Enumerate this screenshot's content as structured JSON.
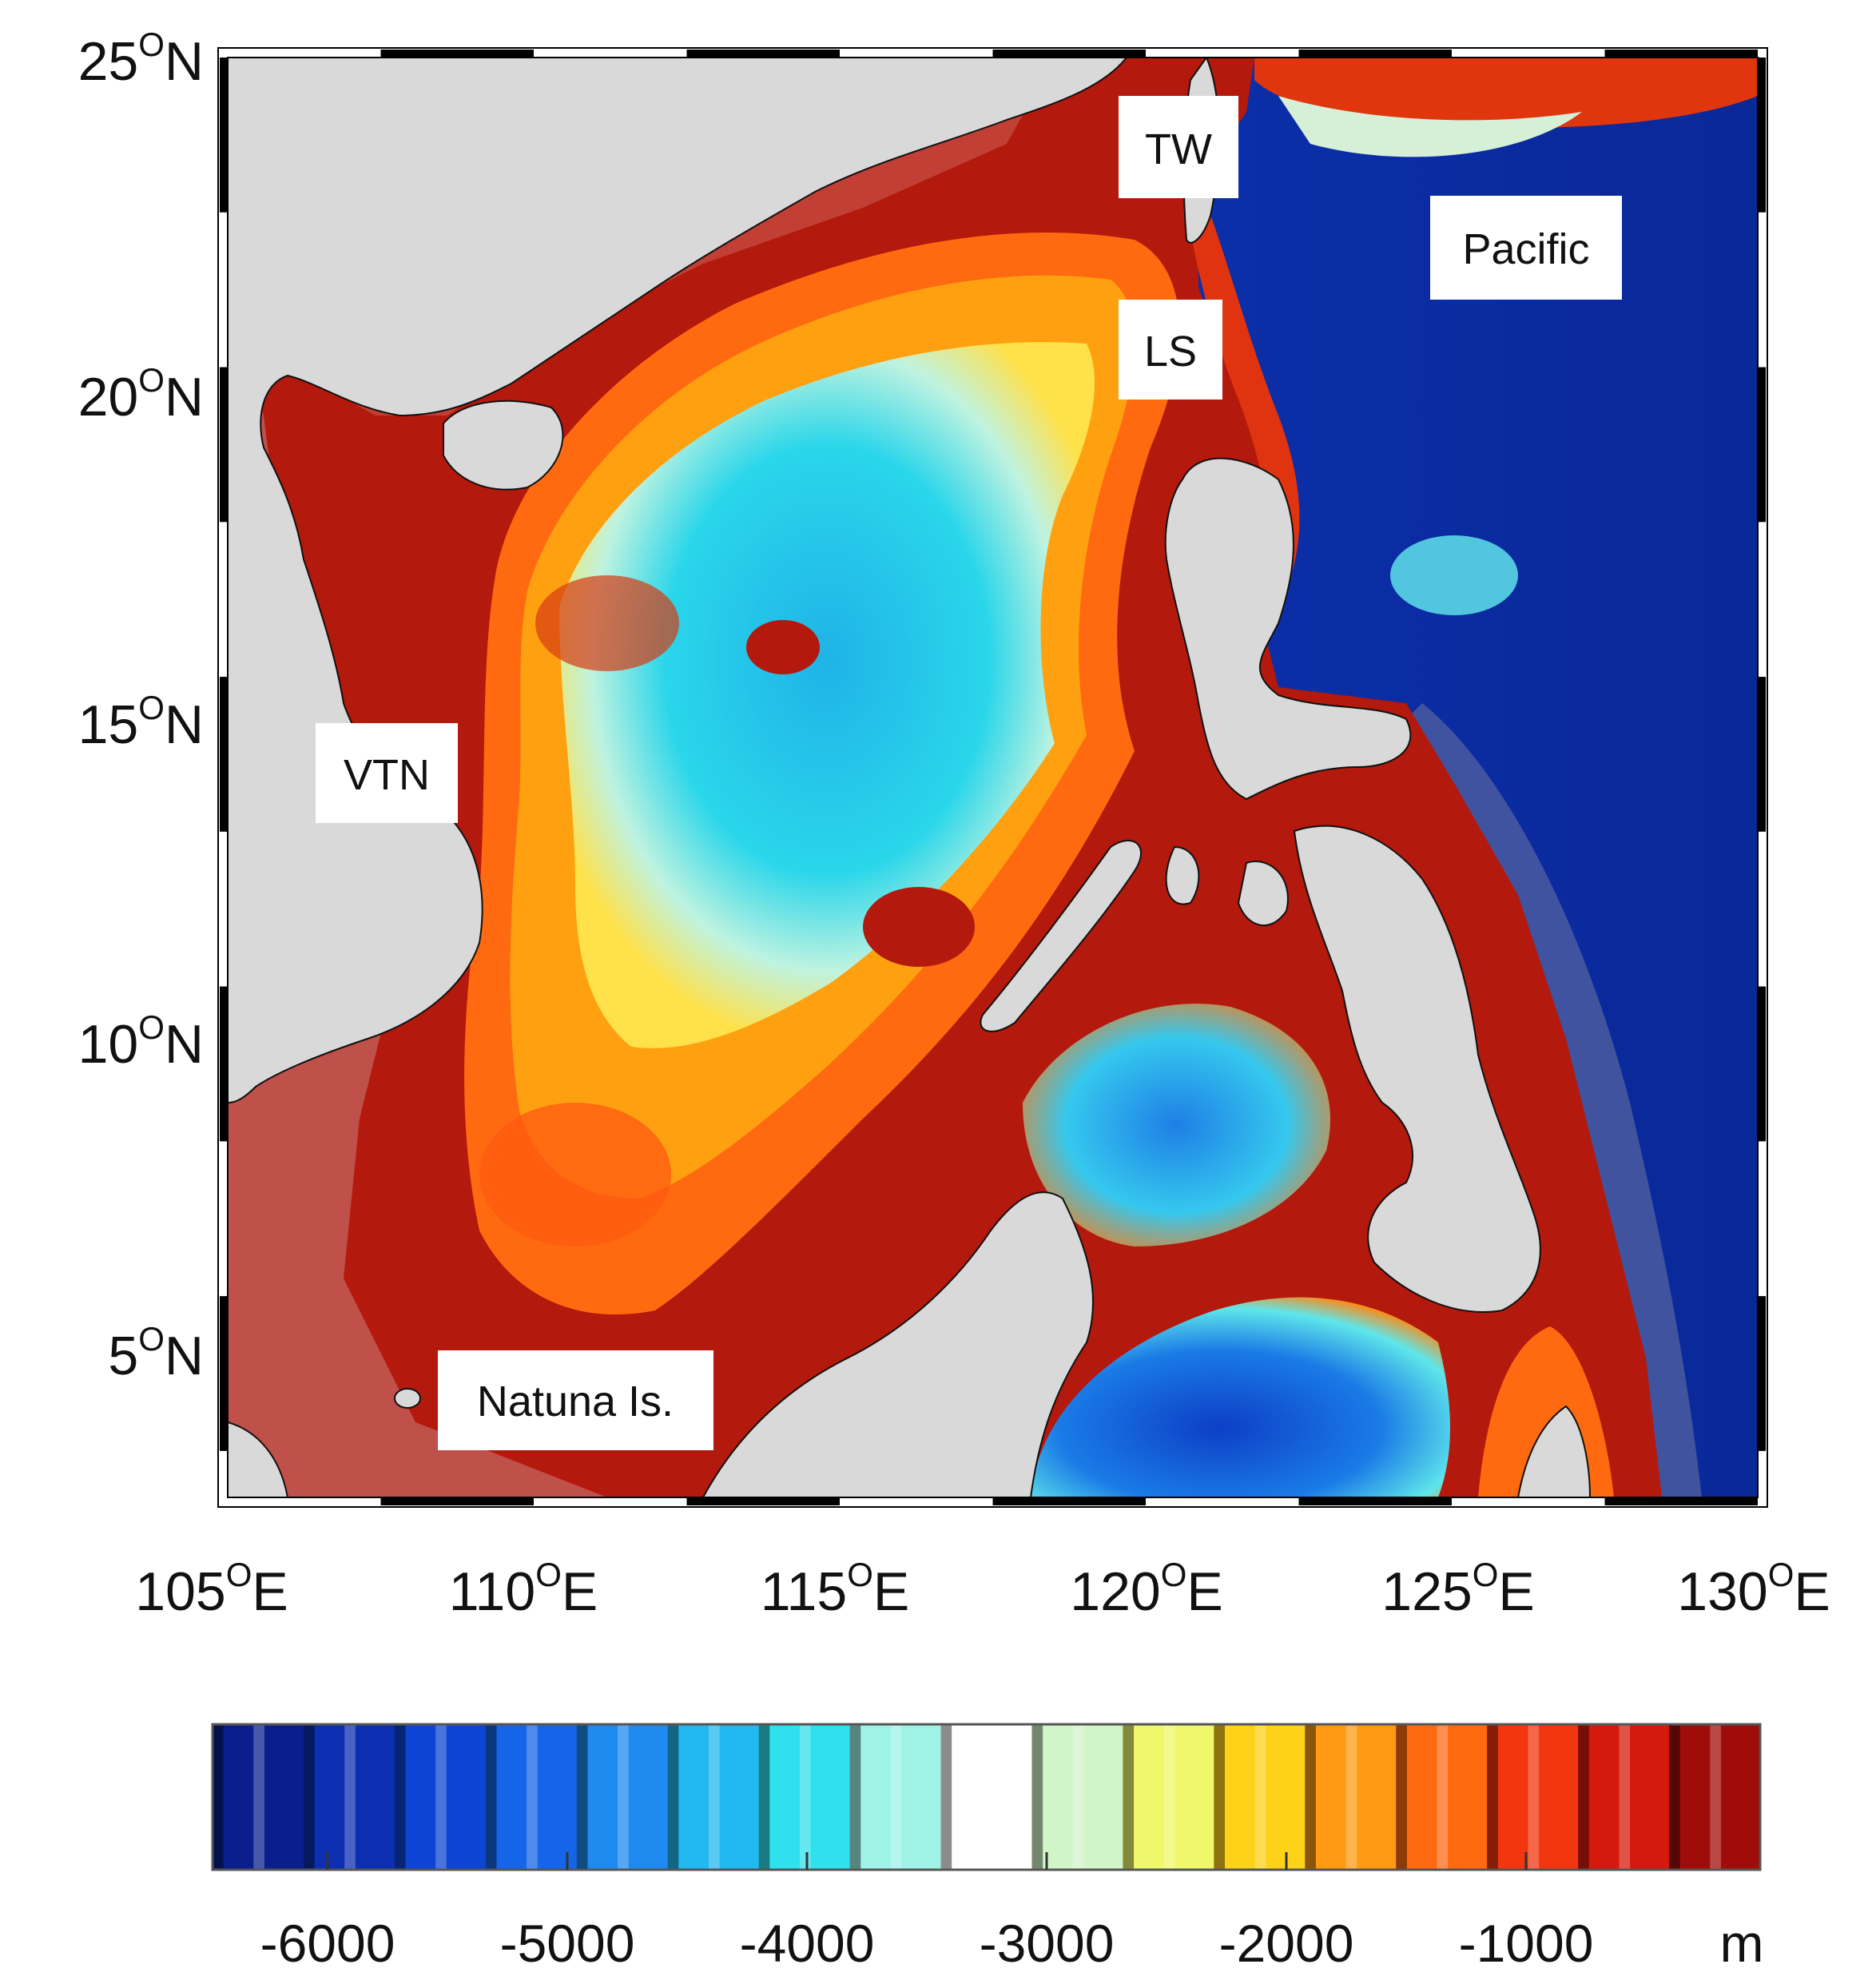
{
  "map": {
    "lat_labels": [
      {
        "deg": "25",
        "unit": "O",
        "hemi": "N"
      },
      {
        "deg": "20",
        "unit": "O",
        "hemi": "N"
      },
      {
        "deg": "15",
        "unit": "O",
        "hemi": "N"
      },
      {
        "deg": "10",
        "unit": "O",
        "hemi": "N"
      },
      {
        "deg": "5",
        "unit": "O",
        "hemi": "N"
      }
    ],
    "lon_labels": [
      {
        "deg": "105",
        "unit": "O",
        "hemi": "E"
      },
      {
        "deg": "110",
        "unit": "O",
        "hemi": "E"
      },
      {
        "deg": "115",
        "unit": "O",
        "hemi": "E"
      },
      {
        "deg": "120",
        "unit": "O",
        "hemi": "E"
      },
      {
        "deg": "125",
        "unit": "O",
        "hemi": "E"
      },
      {
        "deg": "130",
        "unit": "O",
        "hemi": "E"
      }
    ],
    "place_labels": {
      "tw": "TW",
      "ls": "LS",
      "pacific": "Pacific",
      "vtn": "VTN",
      "natuna": "Natuna Is."
    }
  },
  "colorbar": {
    "ticks": [
      "-6000",
      "-5000",
      "-4000",
      "-3000",
      "-2000",
      "-1000"
    ],
    "unit": "m",
    "colors": [
      "#0a1f8c",
      "#0b2fb0",
      "#0d44d4",
      "#1565e8",
      "#1e8af0",
      "#22b8f0",
      "#2fe0ee",
      "#9ef2e6",
      "#ffffff",
      "#d2f5c8",
      "#eef86a",
      "#ffd21a",
      "#ff9a12",
      "#ff6a10",
      "#f2360e",
      "#d41a0c",
      "#a00c0a"
    ]
  },
  "colors": {
    "land": "#d9d9d9",
    "shelf": "#b3190c",
    "shelf_shallow": "#c0504a",
    "deep_pacific": "#0c2fa8"
  }
}
